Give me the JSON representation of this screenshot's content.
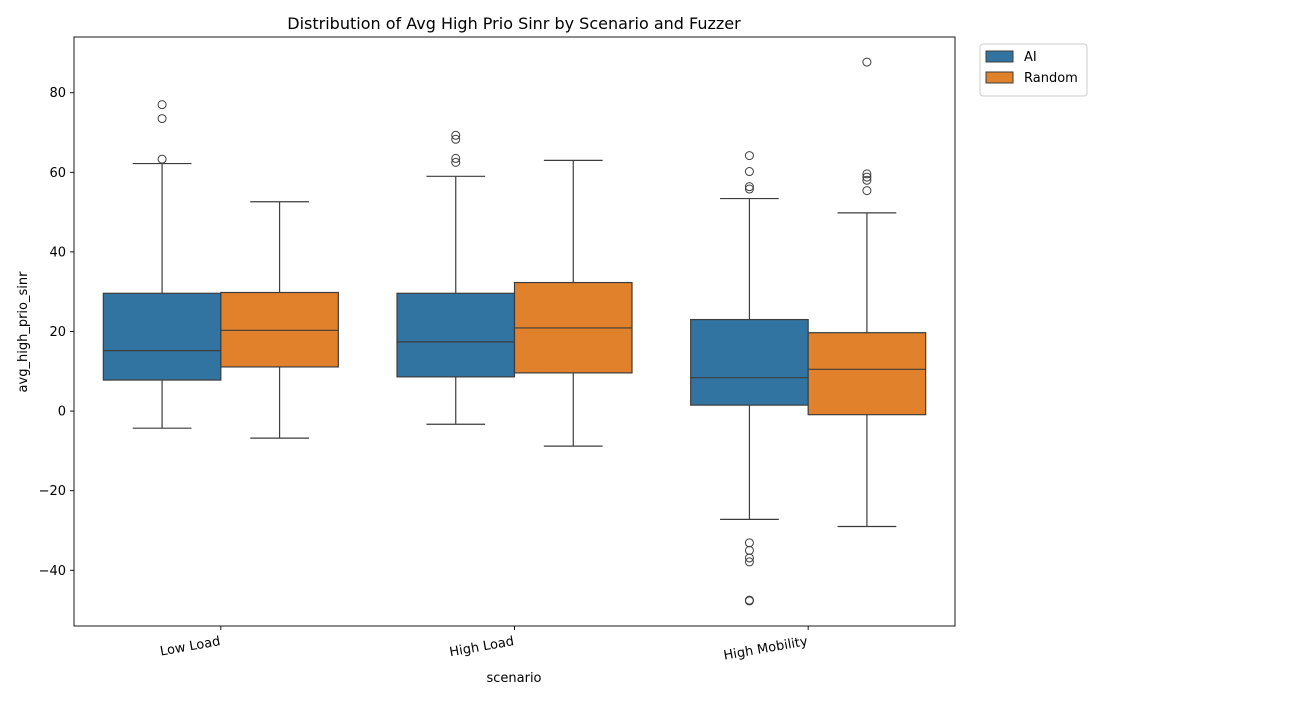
{
  "chart_data": {
    "type": "box",
    "title": "Distribution of Avg High Prio Sinr by Scenario and Fuzzer",
    "xlabel": "scenario",
    "ylabel": "avg_high_prio_sinr",
    "categories": [
      "Low Load",
      "High Load",
      "High Mobility"
    ],
    "ylim": [
      -54,
      94
    ],
    "yticks": [
      -40,
      -20,
      0,
      20,
      40,
      60,
      80
    ],
    "ytick_labels": [
      "−40",
      "−20",
      "0",
      "20",
      "40",
      "60",
      "80"
    ],
    "legend_position": "outside-top-right",
    "grid": false,
    "series": [
      {
        "name": "AI",
        "color": "#3274a1",
        "boxes": [
          {
            "whisker_low": -4.3,
            "q1": 7.8,
            "median": 15.2,
            "q3": 29.6,
            "whisker_high": 62.2,
            "outliers": [
              63.3,
              73.5,
              77.0
            ]
          },
          {
            "whisker_low": -3.3,
            "q1": 8.6,
            "median": 17.4,
            "q3": 29.6,
            "whisker_high": 59.0,
            "outliers": [
              62.5,
              63.5,
              68.3,
              69.3
            ]
          },
          {
            "whisker_low": -27.2,
            "q1": 1.5,
            "median": 8.4,
            "q3": 23.0,
            "whisker_high": 53.4,
            "outliers": [
              55.8,
              56.4,
              60.2,
              64.2,
              -33.1,
              -35.0,
              -36.9,
              -37.9,
              -47.5,
              -47.7
            ]
          }
        ]
      },
      {
        "name": "Random",
        "color": "#e1812c",
        "boxes": [
          {
            "whisker_low": -6.8,
            "q1": 11.1,
            "median": 20.3,
            "q3": 29.8,
            "whisker_high": 52.6,
            "outliers": []
          },
          {
            "whisker_low": -8.8,
            "q1": 9.6,
            "median": 20.9,
            "q3": 32.3,
            "whisker_high": 63.0,
            "outliers": []
          },
          {
            "whisker_low": -29.0,
            "q1": -0.9,
            "median": 10.5,
            "q3": 19.7,
            "whisker_high": 49.8,
            "outliers": [
              55.4,
              58.0,
              58.8,
              59.6,
              87.7
            ]
          }
        ]
      }
    ]
  }
}
